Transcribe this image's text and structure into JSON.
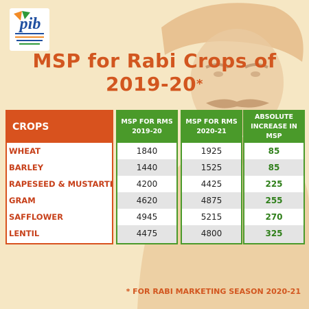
{
  "logo": {
    "name": "pib",
    "subtitle": "पत्र सूचना कार्यालय",
    "subtitle_en": "PRESS INFORMATION BUREAU",
    "subtitle2": "भारत सरकार"
  },
  "title": {
    "line1": "MSP for Rabi Crops of",
    "line2": "2019-20",
    "star": "*"
  },
  "table": {
    "headers": {
      "crops": "CROPS",
      "msp1920": "MSP FOR RMS 2019-20",
      "msp2021": "MSP FOR RMS 2020-21",
      "increase": "ABSOLUTE INCREASE IN MSP"
    },
    "rows": [
      {
        "crop": "WHEAT",
        "msp1920": "1840",
        "msp2021": "1925",
        "increase": "85"
      },
      {
        "crop": "BARLEY",
        "msp1920": "1440",
        "msp2021": "1525",
        "increase": "85"
      },
      {
        "crop": "RAPESEED & MUSTARTD OIL",
        "msp1920": "4200",
        "msp2021": "4425",
        "increase": "225"
      },
      {
        "crop": "GRAM",
        "msp1920": "4620",
        "msp2021": "4875",
        "increase": "255"
      },
      {
        "crop": "SAFFLOWER",
        "msp1920": "4945",
        "msp2021": "5215",
        "increase": "270"
      },
      {
        "crop": "LENTIL",
        "msp1920": "4475",
        "msp2021": "4800",
        "increase": "325"
      }
    ]
  },
  "footnote": "* FOR RABI MARKETING SEASON 2020-21",
  "colors": {
    "accent": "#d8521e",
    "green": "#4a9a2a",
    "background": "#f6e7c4"
  }
}
